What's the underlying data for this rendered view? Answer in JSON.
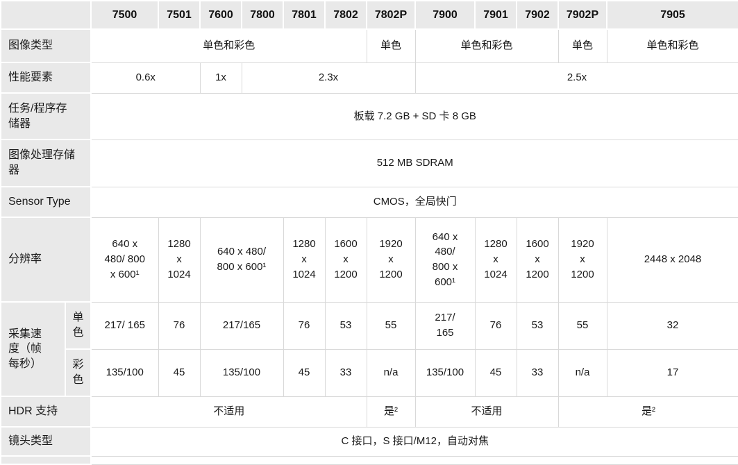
{
  "colors": {
    "label_bg": "#e9e9e9",
    "cell_bg": "#ffffff",
    "border": "#d9d9d9",
    "text": "#1a1a1a"
  },
  "table": {
    "corner_label": "",
    "models": [
      "7500",
      "7501",
      "7600",
      "7800",
      "7801",
      "7802",
      "7802P",
      "7900",
      "7901",
      "7902",
      "7902P",
      "7905"
    ],
    "rows": [
      {
        "label": "图像类型",
        "cells": [
          {
            "text": "单色和彩色",
            "span": 6
          },
          {
            "text": "单色",
            "span": 1
          },
          {
            "text": "单色和彩色",
            "span": 3
          },
          {
            "text": "单色",
            "span": 1
          },
          {
            "text": "单色和彩色",
            "span": 1
          }
        ]
      },
      {
        "label": "性能要素",
        "cells": [
          {
            "text": "0.6x",
            "span": 2
          },
          {
            "text": "1x",
            "span": 1
          },
          {
            "text": "2.3x",
            "span": 4
          },
          {
            "text": "2.5x",
            "span": 5
          }
        ]
      },
      {
        "label": "任务/程序存\n储器",
        "cells": [
          {
            "text": "板载 7.2 GB + SD 卡 8 GB",
            "span": 12
          }
        ]
      },
      {
        "label": "图像处理存储\n器",
        "cells": [
          {
            "text": "512 MB SDRAM",
            "span": 12
          }
        ]
      },
      {
        "label": "Sensor Type",
        "cells": [
          {
            "text": "CMOS，全局快门",
            "span": 12
          }
        ]
      },
      {
        "label": "分辨率",
        "cells": [
          {
            "text": "640 x\n480/ 800\nx 600¹",
            "span": 1
          },
          {
            "text": "1280\nx\n1024",
            "span": 1
          },
          {
            "text": "640 x 480/\n800 x 600¹",
            "span": 2
          },
          {
            "text": "1280\nx\n1024",
            "span": 1
          },
          {
            "text": "1600\nx\n1200",
            "span": 1
          },
          {
            "text": "1920\nx\n1200",
            "span": 1
          },
          {
            "text": "640 x\n480/\n800 x\n600¹",
            "span": 1
          },
          {
            "text": "1280\nx\n1024",
            "span": 1
          },
          {
            "text": "1600\nx\n1200",
            "span": 1
          },
          {
            "text": "1920\nx\n1200",
            "span": 1
          },
          {
            "text": "2448 x 2048",
            "span": 1
          }
        ]
      },
      {
        "label": "采集速\n度（帧\n每秒）",
        "label_rowspan": 2,
        "sublabel": "单\n色",
        "cells": [
          {
            "text": "217/ 165",
            "span": 1
          },
          {
            "text": "76",
            "span": 1
          },
          {
            "text": "217/165",
            "span": 2
          },
          {
            "text": "76",
            "span": 1
          },
          {
            "text": "53",
            "span": 1
          },
          {
            "text": "55",
            "span": 1
          },
          {
            "text": "217/\n165",
            "span": 1
          },
          {
            "text": "76",
            "span": 1
          },
          {
            "text": "53",
            "span": 1
          },
          {
            "text": "55",
            "span": 1
          },
          {
            "text": "32",
            "span": 1
          }
        ]
      },
      {
        "sublabel": "彩\n色",
        "cells": [
          {
            "text": "135/100",
            "span": 1
          },
          {
            "text": "45",
            "span": 1
          },
          {
            "text": "135/100",
            "span": 2
          },
          {
            "text": "45",
            "span": 1
          },
          {
            "text": "33",
            "span": 1
          },
          {
            "text": "n/a",
            "span": 1
          },
          {
            "text": "135/100",
            "span": 1
          },
          {
            "text": "45",
            "span": 1
          },
          {
            "text": "33",
            "span": 1
          },
          {
            "text": "n/a",
            "span": 1
          },
          {
            "text": "17",
            "span": 1
          }
        ]
      },
      {
        "label": "HDR 支持",
        "cells": [
          {
            "text": "不适用",
            "span": 6
          },
          {
            "text": "是²",
            "span": 1
          },
          {
            "text": "不适用",
            "span": 3
          },
          {
            "text": "是²",
            "span": 2
          }
        ]
      },
      {
        "label": "镜头类型",
        "cells": [
          {
            "text": "C 接口，S 接口/M12，自动对焦",
            "span": 12
          }
        ]
      },
      {
        "label": "",
        "cells": [
          {
            "text": "",
            "span": 12
          }
        ]
      }
    ]
  }
}
